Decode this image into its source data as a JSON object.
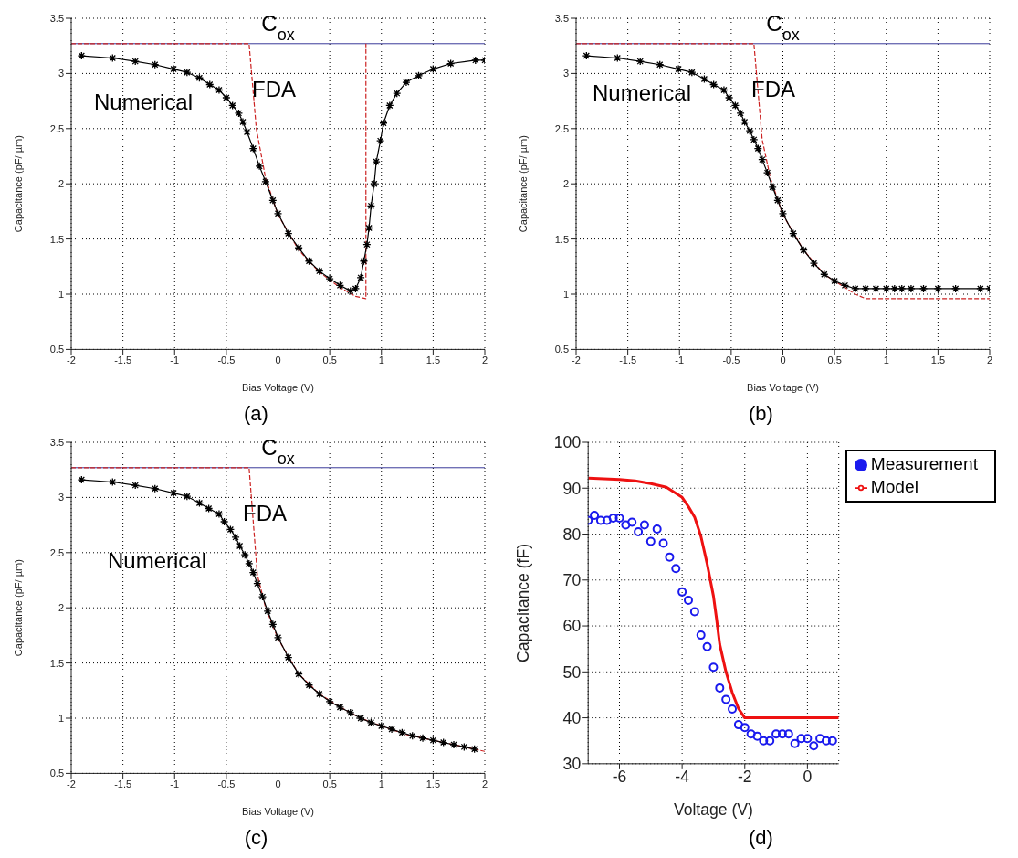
{
  "chart_data": [
    {
      "type": "line",
      "xlabel": "Bias Voltage (V)",
      "ylabel": "Capacitance (pF/ µm)",
      "xlim": [
        -2,
        2
      ],
      "ylim": [
        0.5,
        3.5
      ],
      "xticks": [
        -2,
        -1.5,
        -1,
        -0.5,
        0,
        0.5,
        1,
        1.5,
        2
      ],
      "yticks": [
        0.5,
        1,
        1.5,
        2,
        2.5,
        3,
        3.5
      ],
      "grid": true,
      "ref_lines": [
        {
          "axis": "y",
          "value": 3.27,
          "label": "C$_{ox}$",
          "color": "#3a3a9a"
        }
      ],
      "annotations": [
        "Numerical",
        "FDA",
        "(a)"
      ],
      "series": [
        {
          "color": "#000000",
          "marker": "cross",
          "x": [
            -1.9,
            -1.6,
            -1.38,
            -1.19,
            -1.01,
            -0.88,
            -0.76,
            -0.66,
            -0.57,
            -0.5,
            -0.44,
            -0.38,
            -0.34,
            -0.3,
            -0.24,
            -0.18,
            -0.12,
            -0.05,
            0,
            0.1,
            0.2,
            0.3,
            0.4,
            0.5,
            0.6,
            0.7,
            0.75,
            0.8,
            0.83,
            0.86,
            0.88,
            0.9,
            0.93,
            0.95,
            0.99,
            1.02,
            1.08,
            1.15,
            1.24,
            1.36,
            1.5,
            1.67,
            1.91,
            2
          ],
          "values": [
            3.16,
            3.14,
            3.11,
            3.08,
            3.04,
            3.01,
            2.96,
            2.9,
            2.85,
            2.78,
            2.71,
            2.64,
            2.56,
            2.47,
            2.32,
            2.16,
            2.02,
            1.85,
            1.73,
            1.55,
            1.42,
            1.3,
            1.21,
            1.14,
            1.08,
            1.03,
            1.05,
            1.15,
            1.3,
            1.45,
            1.6,
            1.8,
            2.0,
            2.2,
            2.39,
            2.55,
            2.71,
            2.82,
            2.92,
            2.98,
            3.04,
            3.09,
            3.12,
            3.12
          ]
        },
        {
          "color": "#cc2222",
          "line_style": "dashed",
          "x": [
            -2,
            -0.28,
            -0.21,
            -0.12,
            0,
            0.2,
            0.4,
            0.6,
            0.75,
            0.85,
            0.85
          ],
          "values": [
            3.27,
            3.27,
            2.5,
            2.05,
            1.72,
            1.4,
            1.2,
            1.06,
            0.98,
            0.96,
            3.27
          ]
        }
      ]
    },
    {
      "type": "line",
      "xlabel": "Bias Voltage (V)",
      "ylabel": "Capacitance (pF/ µm)",
      "xlim": [
        -2,
        2
      ],
      "ylim": [
        0.5,
        3.5
      ],
      "xticks": [
        -2,
        -1.5,
        -1,
        -0.5,
        0,
        0.5,
        1,
        1.5,
        2
      ],
      "yticks": [
        0.5,
        1,
        1.5,
        2,
        2.5,
        3,
        3.5
      ],
      "grid": true,
      "ref_lines": [
        {
          "axis": "y",
          "value": 3.27,
          "label": "C$_{ox}$",
          "color": "#3a3a9a"
        }
      ],
      "annotations": [
        "Numerical",
        "FDA",
        "(b)"
      ],
      "series": [
        {
          "color": "#000000",
          "marker": "cross",
          "x": [
            -1.9,
            -1.6,
            -1.38,
            -1.19,
            -1.01,
            -0.88,
            -0.76,
            -0.67,
            -0.57,
            -0.52,
            -0.46,
            -0.41,
            -0.37,
            -0.32,
            -0.28,
            -0.24,
            -0.2,
            -0.15,
            -0.1,
            -0.05,
            0,
            0.1,
            0.2,
            0.3,
            0.4,
            0.5,
            0.6,
            0.7,
            0.8,
            0.9,
            1,
            1.08,
            1.15,
            1.24,
            1.36,
            1.5,
            1.67,
            1.91,
            2
          ],
          "values": [
            3.16,
            3.14,
            3.11,
            3.08,
            3.04,
            3.01,
            2.95,
            2.9,
            2.85,
            2.78,
            2.71,
            2.64,
            2.56,
            2.48,
            2.4,
            2.32,
            2.22,
            2.1,
            1.97,
            1.85,
            1.73,
            1.55,
            1.4,
            1.28,
            1.18,
            1.12,
            1.08,
            1.05,
            1.05,
            1.05,
            1.05,
            1.05,
            1.05,
            1.05,
            1.05,
            1.05,
            1.05,
            1.05,
            1.05
          ]
        },
        {
          "color": "#cc2222",
          "line_style": "dashed",
          "x": [
            -2,
            -0.28,
            -0.2,
            -0.12,
            0,
            0.2,
            0.4,
            0.6,
            0.7,
            0.8,
            2
          ],
          "values": [
            3.27,
            3.27,
            2.4,
            2.05,
            1.72,
            1.4,
            1.18,
            1.06,
            1.0,
            0.96,
            0.96
          ]
        }
      ]
    },
    {
      "type": "line",
      "xlabel": "Bias Voltage (V)",
      "ylabel": "Capacitance (pF/ µm)",
      "xlim": [
        -2,
        2
      ],
      "ylim": [
        0.5,
        3.5
      ],
      "xticks": [
        -2,
        -1.5,
        -1,
        -0.5,
        0,
        0.5,
        1,
        1.5,
        2
      ],
      "yticks": [
        0.5,
        1,
        1.5,
        2,
        2.5,
        3,
        3.5
      ],
      "grid": true,
      "ref_lines": [
        {
          "axis": "y",
          "value": 3.27,
          "label": "C$_{ox}$",
          "color": "#3a3a9a"
        }
      ],
      "annotations": [
        "Numerical",
        "FDA",
        "(c)"
      ],
      "series": [
        {
          "color": "#000000",
          "marker": "cross",
          "x": [
            -1.9,
            -1.6,
            -1.38,
            -1.19,
            -1.01,
            -0.88,
            -0.76,
            -0.67,
            -0.57,
            -0.52,
            -0.46,
            -0.41,
            -0.37,
            -0.32,
            -0.28,
            -0.24,
            -0.2,
            -0.15,
            -0.1,
            -0.05,
            0,
            0.1,
            0.2,
            0.3,
            0.4,
            0.5,
            0.6,
            0.7,
            0.8,
            0.9,
            1,
            1.1,
            1.2,
            1.3,
            1.4,
            1.5,
            1.6,
            1.7,
            1.8,
            1.9
          ],
          "values": [
            3.16,
            3.14,
            3.11,
            3.08,
            3.04,
            3.01,
            2.95,
            2.9,
            2.85,
            2.78,
            2.71,
            2.64,
            2.56,
            2.48,
            2.4,
            2.32,
            2.22,
            2.1,
            1.97,
            1.85,
            1.73,
            1.55,
            1.4,
            1.3,
            1.22,
            1.15,
            1.1,
            1.05,
            1.0,
            0.96,
            0.93,
            0.9,
            0.87,
            0.84,
            0.82,
            0.8,
            0.78,
            0.76,
            0.74,
            0.72
          ]
        },
        {
          "color": "#cc2222",
          "line_style": "dashed",
          "x": [
            -2,
            -0.28,
            -0.2,
            -0.12,
            0,
            0.2,
            0.4,
            0.6,
            0.8,
            1,
            1.25,
            1.45,
            1.65,
            1.85,
            2
          ],
          "values": [
            3.27,
            3.27,
            2.3,
            2.0,
            1.72,
            1.4,
            1.22,
            1.1,
            1.0,
            0.93,
            0.85,
            0.81,
            0.77,
            0.73,
            0.7
          ]
        }
      ]
    },
    {
      "type": "line",
      "xlabel": "Voltage (V)",
      "ylabel": "Capacitance (fF)",
      "xlim": [
        -7,
        1
      ],
      "ylim": [
        30,
        100
      ],
      "xticks": [
        -6,
        -4,
        -2,
        0
      ],
      "yticks": [
        30,
        40,
        50,
        60,
        70,
        80,
        90,
        100
      ],
      "grid": true,
      "legend": "top right",
      "annotations": [
        "(d)"
      ],
      "series": [
        {
          "type": "scatter",
          "name": "Measurement",
          "color": "#1a1aee",
          "marker": "circle",
          "x": [
            -7,
            -6.8,
            -6.6,
            -6.4,
            -6.2,
            -6,
            -5.8,
            -5.6,
            -5.4,
            -5.2,
            -5,
            -4.8,
            -4.6,
            -4.4,
            -4.2,
            -4,
            -3.8,
            -3.6,
            -3.4,
            -3.2,
            -3,
            -2.8,
            -2.6,
            -2.4,
            -2.2,
            -2,
            -1.8,
            -1.6,
            -1.4,
            -1.2,
            -1,
            -0.8,
            -0.6,
            -0.4,
            -0.2,
            0,
            0.2,
            0.4,
            0.6,
            0.8
          ],
          "values": [
            83.0,
            84.1,
            83.0,
            83.0,
            83.5,
            83.5,
            82.0,
            82.6,
            80.5,
            82.0,
            78.4,
            81.1,
            78.0,
            75.0,
            72.5,
            67.4,
            65.6,
            63.1,
            58.0,
            55.5,
            51.0,
            46.5,
            44.0,
            41.9,
            38.5,
            37.9,
            36.5,
            36.0,
            35.0,
            35.0,
            36.5,
            36.5,
            36.5,
            34.4,
            35.5,
            35.5,
            33.9,
            35.5,
            35.0,
            35.0
          ]
        },
        {
          "name": "Model",
          "color": "#ee1111",
          "x": [
            -7,
            -6,
            -5.5,
            -5,
            -4.5,
            -4,
            -3.8,
            -3.6,
            -3.4,
            -3.2,
            -3,
            -2.9,
            -2.8,
            -2.6,
            -2.4,
            -2.2,
            -2,
            1
          ],
          "values": [
            92.2,
            91.9,
            91.6,
            91.0,
            90.2,
            88.0,
            86.0,
            83.7,
            79.5,
            73.5,
            66.5,
            61.5,
            56.0,
            50.0,
            45.5,
            42.0,
            40.0,
            40.0
          ]
        }
      ]
    }
  ]
}
